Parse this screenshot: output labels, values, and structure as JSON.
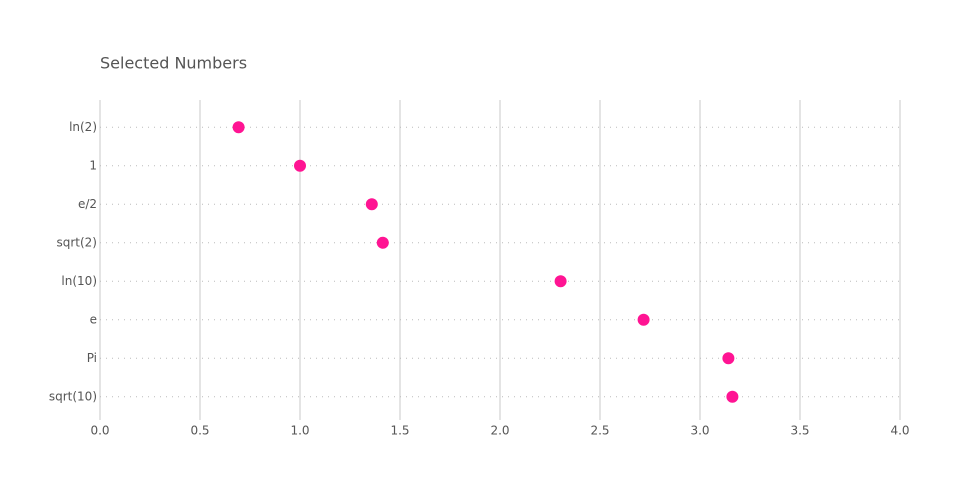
{
  "chart_data": {
    "type": "dot",
    "title": "Selected Numbers",
    "categories": [
      "ln(2)",
      "1",
      "e/2",
      "sqrt(2)",
      "ln(10)",
      "e",
      "Pi",
      "sqrt(10)"
    ],
    "values": [
      0.693,
      1,
      1.359,
      1.414,
      2.303,
      2.718,
      3.142,
      3.162
    ],
    "color": "#ff1493",
    "xlim": [
      0,
      4
    ],
    "xticks": [
      {
        "value": 0,
        "label": "0.0"
      },
      0.5,
      {
        "value": 1,
        "label": "1.0"
      },
      1.5,
      {
        "value": 2,
        "label": "2.0"
      },
      2.5,
      {
        "value": 3,
        "label": "3.0"
      },
      3.5,
      {
        "value": 4,
        "label": "4.0"
      }
    ],
    "grid": true
  }
}
